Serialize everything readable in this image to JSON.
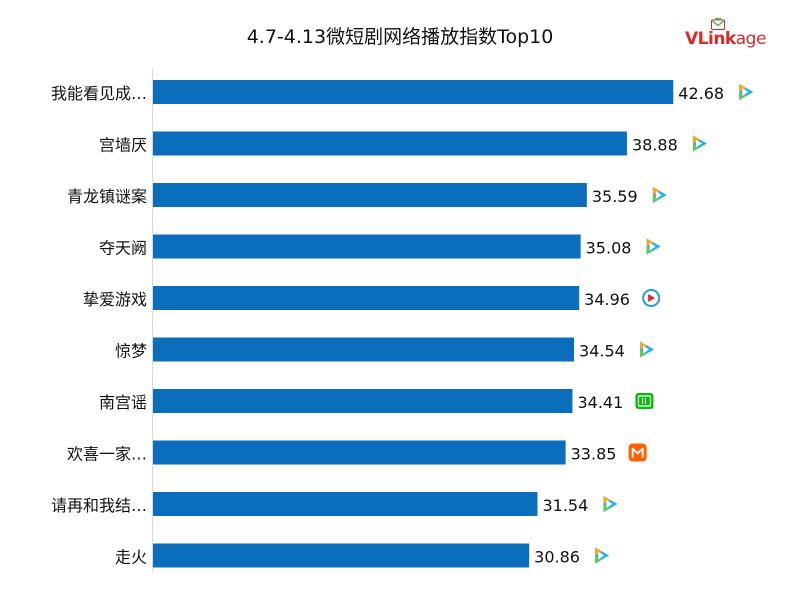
{
  "chart_data": {
    "type": "bar",
    "orientation": "horizontal",
    "title": "4.7-4.13微短剧网络播放指数Top10",
    "categories": [
      "我能看见成…",
      "宫墙厌",
      "青龙镇谜案",
      "夺天阙",
      "挚爱游戏",
      "惊梦",
      "南宫谣",
      "欢喜一家…",
      "请再和我结…",
      "走火"
    ],
    "values": [
      42.68,
      38.88,
      35.59,
      35.08,
      34.96,
      34.54,
      34.41,
      33.85,
      31.54,
      30.86
    ],
    "value_labels": [
      "42.68",
      "38.88",
      "35.59",
      "35.08",
      "34.96",
      "34.54",
      "34.41",
      "33.85",
      "31.54",
      "30.86"
    ],
    "platforms": [
      "tencent-video-icon",
      "tencent-video-icon",
      "tencent-video-icon",
      "tencent-video-icon",
      "youku-icon",
      "tencent-video-icon",
      "iqiyi-icon",
      "mgtv-icon",
      "tencent-video-icon",
      "tencent-video-icon"
    ],
    "xlim": [
      0,
      45
    ],
    "grid": false,
    "bar_color": "#0a6ebd"
  },
  "logo": {
    "text_bold": "VLink",
    "text_light": "age"
  },
  "platform_colors": {
    "tencent-video-icon": [
      "#1fb0f0",
      "#f5a623",
      "#5ac85a"
    ],
    "youku-icon": [
      "#e8262c",
      "#1aa0e8"
    ],
    "iqiyi-icon": [
      "#00be06"
    ],
    "mgtv-icon": [
      "#ff5f00"
    ]
  }
}
